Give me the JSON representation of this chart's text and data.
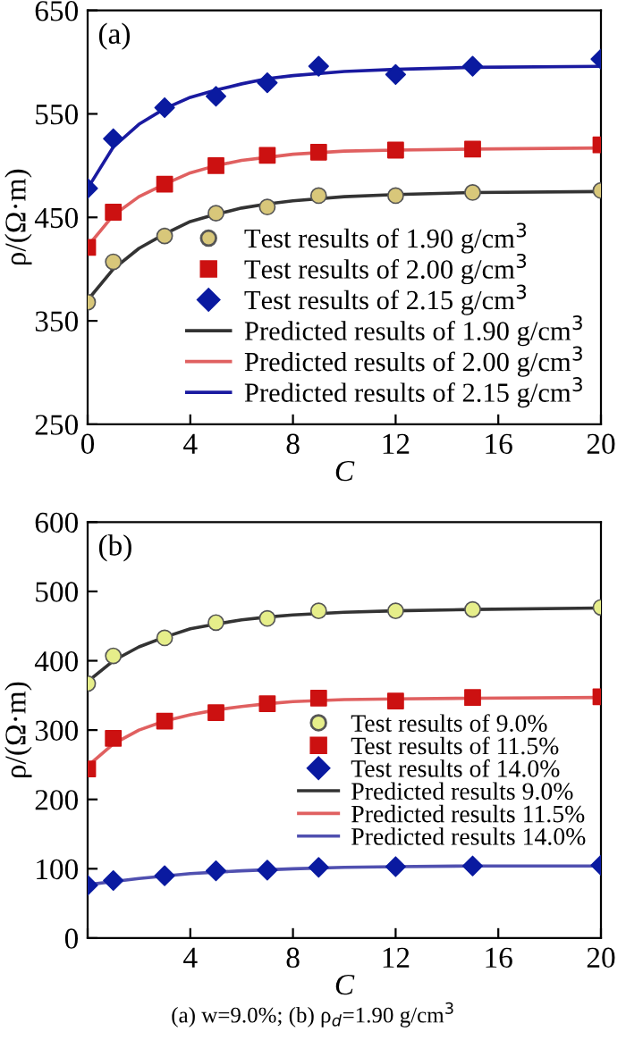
{
  "chart_data": [
    {
      "type": "line",
      "title": "(a)",
      "xlabel": "C",
      "ylabel": "ρ/(Ω·m)",
      "xlim": [
        0,
        20
      ],
      "xticks": [
        0,
        4,
        8,
        12,
        16,
        20
      ],
      "ylim": [
        250,
        650
      ],
      "yticks": [
        250,
        350,
        450,
        550,
        650
      ],
      "grid": false,
      "legend": "bottom right",
      "line_style": "solid",
      "series": [
        {
          "name": "Test results of 1.90 g/cm$^{3}$",
          "type": "scatter",
          "marker": "circle",
          "color": "#d8c77a",
          "x": [
            0,
            1,
            3,
            5,
            7,
            9,
            12,
            15,
            20
          ],
          "values": [
            368,
            407,
            432,
            454,
            460,
            471,
            471,
            474,
            476
          ]
        },
        {
          "name": "Test results of 2.00 g/cm$^{3}$",
          "type": "scatter",
          "marker": "square",
          "color": "#cc1111",
          "x": [
            0,
            1,
            3,
            5,
            7,
            9,
            12,
            15,
            20
          ],
          "values": [
            421,
            455,
            482,
            500,
            510,
            513,
            515,
            516,
            520
          ]
        },
        {
          "name": "Test results of 2.15 g/cm$^{3}$",
          "type": "scatter",
          "marker": "diamond",
          "color": "#0a1aa0",
          "x": [
            0,
            1,
            3,
            5,
            7,
            9,
            12,
            15,
            20
          ],
          "values": [
            478,
            526,
            556,
            567,
            580,
            596,
            588,
            596,
            603
          ]
        },
        {
          "name": "Predicted results of 1.90 g/cm$^{3}$",
          "marker": "none",
          "color": "#333333",
          "x": [
            0,
            1,
            2,
            3,
            4,
            5,
            6,
            7,
            8,
            10,
            12,
            15,
            20
          ],
          "values": [
            370,
            400,
            420,
            434,
            446,
            453,
            459,
            463,
            466,
            470,
            472,
            474,
            475
          ]
        },
        {
          "name": "Predicted results of 2.00 g/cm$^{3}$",
          "marker": "none",
          "color": "#e06060",
          "x": [
            0,
            1,
            2,
            3,
            4,
            5,
            6,
            7,
            8,
            10,
            12,
            15,
            20
          ],
          "values": [
            422,
            452,
            470,
            482,
            493,
            500,
            505,
            508,
            511,
            514,
            515,
            516,
            517
          ]
        },
        {
          "name": "Predicted results of 2.15 g/cm$^{3}$",
          "marker": "none",
          "color": "#1a1aa0",
          "x": [
            0,
            1,
            2,
            3,
            4,
            5,
            6,
            7,
            8,
            10,
            12,
            15,
            20
          ],
          "values": [
            478,
            518,
            540,
            555,
            566,
            573,
            579,
            584,
            587,
            591,
            593,
            595,
            596
          ]
        }
      ]
    },
    {
      "type": "line",
      "title": "(b)",
      "xlabel": "C",
      "ylabel": "ρ/(Ω·m)",
      "xlim": [
        0,
        20
      ],
      "xticks": [
        {
          "value": 0,
          "label": null
        },
        4,
        8,
        12,
        16,
        20
      ],
      "ylim": [
        0,
        600
      ],
      "yticks": [
        0,
        100,
        200,
        300,
        400,
        500,
        600
      ],
      "grid": false,
      "legend": "right",
      "line_style": "solid",
      "annotations": [
        "(a) w=9.0%; (b) ρ$_{d}$=1.90 g/cm$^{3}$"
      ],
      "series": [
        {
          "name": "Test results of 9.0%",
          "type": "scatter",
          "marker": "circle",
          "color": "#e6ee8a",
          "x": [
            0,
            1,
            3,
            5,
            7,
            9,
            12,
            15,
            20
          ],
          "values": [
            367,
            407,
            433,
            455,
            461,
            472,
            472,
            474,
            477
          ]
        },
        {
          "name": "Test results of 11.5%",
          "type": "scatter",
          "marker": "square",
          "color": "#cc1111",
          "x": [
            0,
            1,
            3,
            5,
            7,
            9,
            12,
            15,
            20
          ],
          "values": [
            244,
            288,
            313,
            325,
            338,
            346,
            342,
            347,
            348
          ]
        },
        {
          "name": "Test results of 14.0%",
          "type": "scatter",
          "marker": "diamond",
          "color": "#0a1aa0",
          "x": [
            0,
            1,
            3,
            5,
            7,
            9,
            12,
            15,
            20
          ],
          "values": [
            76,
            83,
            90,
            97,
            98,
            102,
            103,
            104,
            105
          ]
        },
        {
          "name": "Predicted results 9.0%",
          "marker": "none",
          "color": "#333333",
          "x": [
            0,
            1,
            2,
            3,
            4,
            5,
            6,
            7,
            8,
            10,
            12,
            15,
            20
          ],
          "values": [
            370,
            400,
            420,
            434,
            446,
            453,
            459,
            463,
            466,
            470,
            472,
            474,
            476
          ]
        },
        {
          "name": "Predicted results 11.5%",
          "marker": "none",
          "color": "#e06060",
          "x": [
            0,
            1,
            2,
            3,
            4,
            5,
            6,
            7,
            8,
            10,
            12,
            15,
            20
          ],
          "values": [
            248,
            280,
            300,
            313,
            322,
            329,
            334,
            338,
            341,
            344,
            345,
            346,
            347
          ]
        },
        {
          "name": "Predicted results 14.0%",
          "marker": "none",
          "color": "#5050b0",
          "x": [
            0,
            2,
            4,
            6,
            8,
            10,
            12,
            15,
            20
          ],
          "values": [
            77,
            86,
            93,
            97,
            100,
            102,
            103,
            104,
            104
          ]
        }
      ]
    }
  ]
}
